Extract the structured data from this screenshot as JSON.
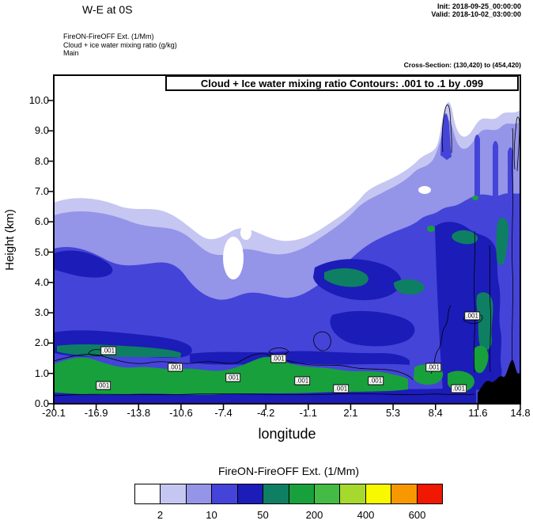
{
  "header": {
    "plot_title": "W-E at 0S",
    "init_label": "Init: 2018-09-25_00:00:00",
    "valid_label": "Valid: 2018-10-02_03:00:00",
    "field_line1": "FireON-FireOFF Ext.  (1/Mm)",
    "field_line2": "Cloud + ice water mixing ratio  (g/kg)",
    "field_line3": "Main",
    "cross_section": "Cross-Section: (130,420) to (454,420)"
  },
  "plot": {
    "inner_title": "Cloud + Ice water mixing ratio Contours: .001 to .1 by .099",
    "xlabel": "longitude",
    "ylabel": "Height (km)",
    "x_tick_labels": [
      "-20.1",
      "-16.9",
      "-13.8",
      "-10.6",
      "-7.4",
      "-4.2",
      "-1.1",
      "2.1",
      "5.3",
      "8.4",
      "11.6",
      "14.8"
    ],
    "y_tick_labels": [
      "0.0",
      "1.0",
      "2.0",
      "3.0",
      "4.0",
      "5.0",
      "6.0",
      "7.0",
      "8.0",
      "9.0",
      "10.0"
    ],
    "contour_label_text": ".001",
    "contour_labels": [
      {
        "lon": -16.0,
        "km": 1.75
      },
      {
        "lon": -16.4,
        "km": 0.6
      },
      {
        "lon": -11.0,
        "km": 1.2
      },
      {
        "lon": -6.7,
        "km": 0.85
      },
      {
        "lon": -3.3,
        "km": 1.5
      },
      {
        "lon": -1.5,
        "km": 0.75
      },
      {
        "lon": 1.4,
        "km": 0.5
      },
      {
        "lon": 4.0,
        "km": 0.75
      },
      {
        "lon": 8.3,
        "km": 1.2
      },
      {
        "lon": 10.2,
        "km": 0.5
      },
      {
        "lon": 11.2,
        "km": 2.9
      }
    ],
    "overflow_color": "#000000"
  },
  "colorbar": {
    "title": "FireON-FireOFF Ext.  (1/Mm)",
    "tick_labels": [
      "2",
      "10",
      "50",
      "200",
      "400",
      "600"
    ],
    "colors": [
      "#ffffff",
      "#c6c6f2",
      "#9494e8",
      "#4444d9",
      "#1c1cb8",
      "#0e7f63",
      "#18a03c",
      "#44bb44",
      "#a6d82e",
      "#f8f800",
      "#f89800",
      "#f01800"
    ]
  },
  "chart_data": {
    "type": "heatmap",
    "title": "Cloud + Ice water mixing ratio Contours: .001 to .1 by .099",
    "xlabel": "longitude",
    "ylabel": "Height (km)",
    "x_ticks": [
      -20.1,
      -16.9,
      -13.8,
      -10.6,
      -7.4,
      -4.2,
      -1.1,
      2.1,
      5.3,
      8.4,
      11.6,
      14.8
    ],
    "y_ticks": [
      0,
      1,
      2,
      3,
      4,
      5,
      6,
      7,
      8,
      9,
      10
    ],
    "xlim": [
      -20.1,
      14.8
    ],
    "ylim": [
      0,
      10.8
    ],
    "fill_variable": "FireON-FireOFF Ext. (1/Mm)",
    "fill_scale_tick_values": [
      2,
      10,
      50,
      200,
      400,
      600
    ],
    "n_fill_bins": 12,
    "line_variable": "Cloud + Ice water mixing ratio (g/kg)",
    "line_contours": {
      "start": 0.001,
      "end": 0.1,
      "interval": 0.099,
      "levels": [
        0.001,
        0.1
      ]
    },
    "cross_section_points": {
      "from": [
        130,
        420
      ],
      "to": [
        454,
        420
      ]
    },
    "init_time": "2018-09-25_00:00:00",
    "valid_time": "2018-10-02_03:00:00",
    "regions": [
      {
        "description": "Near-surface high-extinction layer (green, ~50-200 1/Mm)",
        "lon_range": [
          -20.1,
          10.5
        ],
        "height_km": [
          0.3,
          1.4
        ]
      },
      {
        "description": "Moderate extinction plume (lavender/blue, ~2-50 1/Mm) topping near 6.5 km on the west side",
        "lon_range": [
          -20.1,
          0
        ],
        "height_km": [
          0,
          6.5
        ]
      },
      {
        "description": "Deep enhanced column (dark blue/teal cores) reaching ~9-10 km on the east side",
        "lon_range": [
          5,
          14.8
        ],
        "height_km": [
          0,
          10
        ]
      },
      {
        "description": "Off-scale black pocket (>600 1/Mm) near the surface at far east",
        "lon_range": [
          11.3,
          14.8
        ],
        "height_km": [
          0,
          1.4
        ]
      },
      {
        "description": "Cloud+ice mixing ratio 0.001 g/kg line contours hug the low-level layer with boxed labels",
        "lon_range": [
          -20.1,
          14.8
        ],
        "height_km": [
          0,
          3
        ]
      }
    ]
  }
}
